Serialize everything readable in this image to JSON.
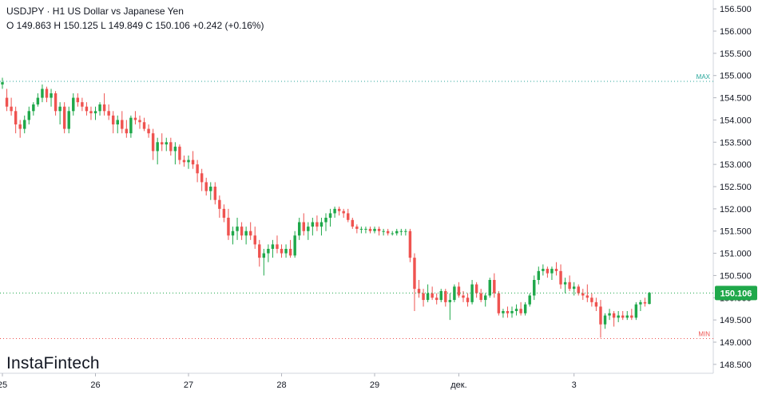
{
  "legend": {
    "title": "USDJPY · H1 US Dollar vs Japanese Yen",
    "ohlc": "O 149.863 H 150.125 L 149.849 C 150.106  +0.242 (+0.16%)"
  },
  "brand": "InstaFintech",
  "colors": {
    "up": "#26a69a",
    "up_body": "#1fa84a",
    "down": "#ef5350",
    "grid": "#f0f3fa",
    "axis_text": "#131722",
    "max_line": "#26a69a",
    "min_line": "#ef5350",
    "price_tag": "#1fa84a"
  },
  "chart_data": {
    "type": "candlestick",
    "symbol": "USDJPY",
    "timeframe": "H1",
    "ylim": [
      148.3,
      156.7
    ],
    "y_ticks": [
      "148.500",
      "149.000",
      "149.500",
      "150.000",
      "150.500",
      "151.000",
      "151.500",
      "152.000",
      "152.500",
      "153.000",
      "153.500",
      "154.000",
      "154.500",
      "155.000",
      "155.500",
      "156.000",
      "156.500"
    ],
    "x_ticks": [
      "25",
      "26",
      "27",
      "28",
      "29",
      "дек.",
      "3"
    ],
    "max_label": "MAX",
    "max_value": 154.87,
    "min_label": "MIN",
    "min_value": 149.08,
    "last_price": 150.106,
    "last_price_label": "150.106",
    "grid": false,
    "candles": [
      [
        154.8,
        154.95,
        154.7,
        154.85
      ],
      [
        154.5,
        154.7,
        154.2,
        154.3
      ],
      [
        154.3,
        154.5,
        154.1,
        154.2
      ],
      [
        154.2,
        154.3,
        153.7,
        153.9
      ],
      [
        153.9,
        154.0,
        153.6,
        153.8
      ],
      [
        153.8,
        154.1,
        153.7,
        154.0
      ],
      [
        154.0,
        154.3,
        153.9,
        154.2
      ],
      [
        154.2,
        154.4,
        154.1,
        154.35
      ],
      [
        154.35,
        154.6,
        154.3,
        154.5
      ],
      [
        154.5,
        154.8,
        154.4,
        154.7
      ],
      [
        154.7,
        154.75,
        154.4,
        154.5
      ],
      [
        154.5,
        154.7,
        154.3,
        154.6
      ],
      [
        154.6,
        154.65,
        154.1,
        154.2
      ],
      [
        154.2,
        154.4,
        153.9,
        154.3
      ],
      [
        154.3,
        154.4,
        153.7,
        153.8
      ],
      [
        153.8,
        154.3,
        153.7,
        154.2
      ],
      [
        154.2,
        154.6,
        154.1,
        154.5
      ],
      [
        154.5,
        154.6,
        154.3,
        154.4
      ],
      [
        154.4,
        154.5,
        154.2,
        154.3
      ],
      [
        154.3,
        154.4,
        154.1,
        154.2
      ],
      [
        154.2,
        154.3,
        154.0,
        154.15
      ],
      [
        154.15,
        154.3,
        154.0,
        154.2
      ],
      [
        154.2,
        154.4,
        154.1,
        154.35
      ],
      [
        154.35,
        154.6,
        154.1,
        154.2
      ],
      [
        154.2,
        154.35,
        154.0,
        154.1
      ],
      [
        154.1,
        154.2,
        153.7,
        153.9
      ],
      [
        153.9,
        154.1,
        153.7,
        154.0
      ],
      [
        154.0,
        154.2,
        153.7,
        153.8
      ],
      [
        153.8,
        154.0,
        153.6,
        153.7
      ],
      [
        153.7,
        154.1,
        153.6,
        154.05
      ],
      [
        154.05,
        154.2,
        153.9,
        154.0
      ],
      [
        154.0,
        154.1,
        153.8,
        153.95
      ],
      [
        153.95,
        154.05,
        153.75,
        153.8
      ],
      [
        153.8,
        153.9,
        153.6,
        153.7
      ],
      [
        153.7,
        153.8,
        153.1,
        153.3
      ],
      [
        153.3,
        153.6,
        153.0,
        153.5
      ],
      [
        153.5,
        153.7,
        153.3,
        153.45
      ],
      [
        153.45,
        153.6,
        153.3,
        153.5
      ],
      [
        153.5,
        153.6,
        153.2,
        153.3
      ],
      [
        153.3,
        153.5,
        153.0,
        153.4
      ],
      [
        153.4,
        153.45,
        153.0,
        153.1
      ],
      [
        153.1,
        153.2,
        152.95,
        153.05
      ],
      [
        153.05,
        153.2,
        152.9,
        153.1
      ],
      [
        153.1,
        153.3,
        152.9,
        153.0
      ],
      [
        153.0,
        153.1,
        152.6,
        152.8
      ],
      [
        152.8,
        152.9,
        152.4,
        152.6
      ],
      [
        152.6,
        152.7,
        152.3,
        152.4
      ],
      [
        152.4,
        152.6,
        152.2,
        152.5
      ],
      [
        152.5,
        152.6,
        152.1,
        152.2
      ],
      [
        152.2,
        152.3,
        151.8,
        152.0
      ],
      [
        152.0,
        152.1,
        151.7,
        151.8
      ],
      [
        151.8,
        152.0,
        151.3,
        151.4
      ],
      [
        151.4,
        151.6,
        151.2,
        151.5
      ],
      [
        151.5,
        151.8,
        151.3,
        151.6
      ],
      [
        151.6,
        151.7,
        151.3,
        151.4
      ],
      [
        151.4,
        151.6,
        151.2,
        151.5
      ],
      [
        151.5,
        151.7,
        151.3,
        151.4
      ],
      [
        151.4,
        151.6,
        151.1,
        151.2
      ],
      [
        151.2,
        151.3,
        150.7,
        150.9
      ],
      [
        150.9,
        151.1,
        150.5,
        151.0
      ],
      [
        151.0,
        151.2,
        150.8,
        151.1
      ],
      [
        151.1,
        151.3,
        150.9,
        151.2
      ],
      [
        151.2,
        151.4,
        151.0,
        151.1
      ],
      [
        151.1,
        151.2,
        150.9,
        151.0
      ],
      [
        151.0,
        151.2,
        150.9,
        151.1
      ],
      [
        151.1,
        151.3,
        150.9,
        150.95
      ],
      [
        150.95,
        151.5,
        150.9,
        151.4
      ],
      [
        151.4,
        151.8,
        151.3,
        151.7
      ],
      [
        151.7,
        151.9,
        151.4,
        151.5
      ],
      [
        151.5,
        151.7,
        151.3,
        151.6
      ],
      [
        151.6,
        151.8,
        151.4,
        151.7
      ],
      [
        151.7,
        151.85,
        151.5,
        151.6
      ],
      [
        151.6,
        151.8,
        151.4,
        151.7
      ],
      [
        151.7,
        151.9,
        151.5,
        151.8
      ],
      [
        151.8,
        152.0,
        151.6,
        151.9
      ],
      [
        151.9,
        152.05,
        151.8,
        152.0
      ],
      [
        152.0,
        152.05,
        151.85,
        151.95
      ],
      [
        151.95,
        152.0,
        151.8,
        151.9
      ],
      [
        151.9,
        152.0,
        151.7,
        151.75
      ],
      [
        151.75,
        151.8,
        151.55,
        151.6
      ],
      [
        151.6,
        151.65,
        151.45,
        151.55
      ],
      [
        151.55,
        151.6,
        151.45,
        151.55
      ],
      [
        151.55,
        151.6,
        151.45,
        151.55
      ],
      [
        151.55,
        151.6,
        151.45,
        151.5
      ],
      [
        151.5,
        151.6,
        151.45,
        151.55
      ],
      [
        151.55,
        151.6,
        151.4,
        151.5
      ],
      [
        151.5,
        151.55,
        151.4,
        151.5
      ],
      [
        151.5,
        151.55,
        151.4,
        151.45
      ],
      [
        151.45,
        151.5,
        151.4,
        151.45
      ],
      [
        151.45,
        151.55,
        151.4,
        151.5
      ],
      [
        151.5,
        151.55,
        151.4,
        151.5
      ],
      [
        151.5,
        151.55,
        151.4,
        151.5
      ],
      [
        151.5,
        151.55,
        150.8,
        150.9
      ],
      [
        150.9,
        151.0,
        149.7,
        150.2
      ],
      [
        150.2,
        150.4,
        150.0,
        150.1
      ],
      [
        150.1,
        150.2,
        149.8,
        149.95
      ],
      [
        149.95,
        150.3,
        149.9,
        150.1
      ],
      [
        150.1,
        150.25,
        149.95,
        150.0
      ],
      [
        150.0,
        150.1,
        149.85,
        149.95
      ],
      [
        149.95,
        150.2,
        149.9,
        150.15
      ],
      [
        150.15,
        150.2,
        149.8,
        149.9
      ],
      [
        149.9,
        150.1,
        149.5,
        149.95
      ],
      [
        149.95,
        150.3,
        149.9,
        150.25
      ],
      [
        150.25,
        150.35,
        150.0,
        150.05
      ],
      [
        150.05,
        150.15,
        149.9,
        150.0
      ],
      [
        150.0,
        150.1,
        149.8,
        149.9
      ],
      [
        149.9,
        150.4,
        149.85,
        150.3
      ],
      [
        150.3,
        150.35,
        150.0,
        150.1
      ],
      [
        150.1,
        150.2,
        149.9,
        149.95
      ],
      [
        149.95,
        150.1,
        149.8,
        150.05
      ],
      [
        150.05,
        150.45,
        150.0,
        150.4
      ],
      [
        150.4,
        150.55,
        150.0,
        150.1
      ],
      [
        150.1,
        150.15,
        149.6,
        149.65
      ],
      [
        149.65,
        149.75,
        149.55,
        149.7
      ],
      [
        149.7,
        149.8,
        149.55,
        149.65
      ],
      [
        149.65,
        149.8,
        149.55,
        149.7
      ],
      [
        149.7,
        149.85,
        149.6,
        149.75
      ],
      [
        149.75,
        149.9,
        149.6,
        149.65
      ],
      [
        149.65,
        149.9,
        149.6,
        149.85
      ],
      [
        149.85,
        150.1,
        149.8,
        150.05
      ],
      [
        150.05,
        150.5,
        149.95,
        150.4
      ],
      [
        150.4,
        150.7,
        150.3,
        150.6
      ],
      [
        150.6,
        150.75,
        150.5,
        150.65
      ],
      [
        150.65,
        150.7,
        150.45,
        150.55
      ],
      [
        150.55,
        150.7,
        150.4,
        150.65
      ],
      [
        150.65,
        150.8,
        150.5,
        150.6
      ],
      [
        150.6,
        150.75,
        150.2,
        150.3
      ],
      [
        150.3,
        150.45,
        150.1,
        150.35
      ],
      [
        150.35,
        150.5,
        150.15,
        150.2
      ],
      [
        150.2,
        150.35,
        150.05,
        150.25
      ],
      [
        150.25,
        150.3,
        150.05,
        150.1
      ],
      [
        150.1,
        150.2,
        149.95,
        150.05
      ],
      [
        150.05,
        150.3,
        149.9,
        150.0
      ],
      [
        150.0,
        150.1,
        149.8,
        149.9
      ],
      [
        149.9,
        150.0,
        149.7,
        149.8
      ],
      [
        149.8,
        149.95,
        149.1,
        149.4
      ],
      [
        149.4,
        149.65,
        149.3,
        149.6
      ],
      [
        149.6,
        149.75,
        149.5,
        149.65
      ],
      [
        149.65,
        149.7,
        149.35,
        149.55
      ],
      [
        149.55,
        149.7,
        149.45,
        149.6
      ],
      [
        149.6,
        149.7,
        149.5,
        149.55
      ],
      [
        149.55,
        149.7,
        149.5,
        149.6
      ],
      [
        149.6,
        149.75,
        149.5,
        149.55
      ],
      [
        149.55,
        149.9,
        149.5,
        149.85
      ],
      [
        149.85,
        149.95,
        149.7,
        149.9
      ],
      [
        149.9,
        150.0,
        149.8,
        149.87
      ],
      [
        149.86,
        150.13,
        149.85,
        150.11
      ]
    ]
  }
}
